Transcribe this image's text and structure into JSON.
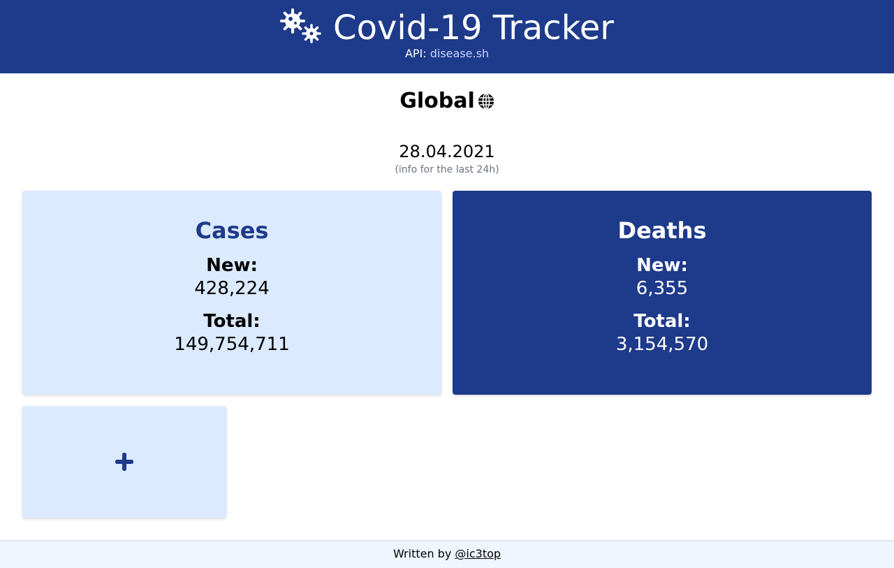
{
  "header": {
    "title": "Covid-19 Tracker",
    "logo_icon": "virus-icon",
    "api_prefix": "API:",
    "api_link": "disease.sh"
  },
  "region": {
    "name": "Global",
    "icon": "globe-icon"
  },
  "date": "28.04.2021",
  "subnote": "(info for the last 24h)",
  "cards": {
    "cases": {
      "title": "Cases",
      "new_label": "New:",
      "new_value": "428,224",
      "total_label": "Total:",
      "total_value": "149,754,711"
    },
    "deaths": {
      "title": "Deaths",
      "new_label": "New:",
      "new_value": "6,355",
      "total_label": "Total:",
      "total_value": "3,154,570"
    }
  },
  "add_card": {
    "icon": "plus-icon"
  },
  "footer": {
    "prefix": "Written by",
    "author_link": "@ic3top"
  },
  "colors": {
    "primary": "#1e3a8a",
    "light": "#dbeafe",
    "footer_bg": "#eff6ff"
  }
}
